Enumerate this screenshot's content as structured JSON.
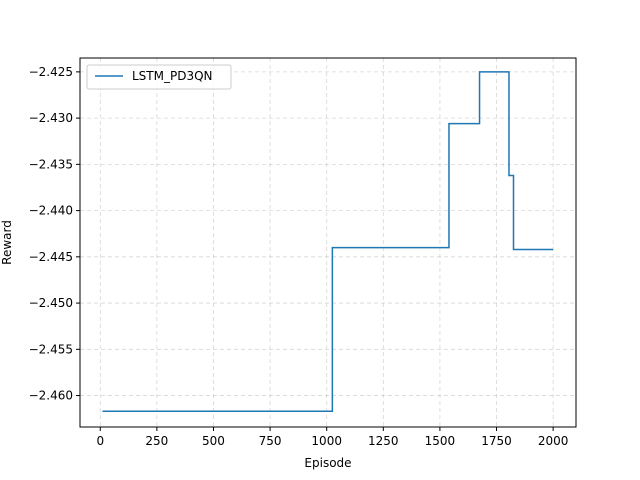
{
  "chart_data": {
    "type": "line",
    "title": "",
    "xlabel": "Episode",
    "ylabel": "Reward",
    "xlim": [
      -89.5,
      2101
    ],
    "ylim": [
      -2.4634,
      -2.4235
    ],
    "xticks": [
      0,
      250,
      500,
      750,
      1000,
      1250,
      1500,
      1750,
      2000
    ],
    "xtick_labels": [
      "0",
      "250",
      "500",
      "750",
      "1000",
      "1250",
      "1500",
      "1750",
      "2000"
    ],
    "yticks": [
      -2.46,
      -2.455,
      -2.45,
      -2.445,
      -2.44,
      -2.435,
      -2.43,
      -2.425
    ],
    "ytick_labels": [
      "−2.460",
      "−2.455",
      "−2.450",
      "−2.445",
      "−2.440",
      "−2.435",
      "−2.430",
      "−2.425"
    ],
    "grid": true,
    "legend_position": "top-left",
    "step": "post",
    "series": [
      {
        "name": "LSTM_PD3QN",
        "color": "#1f77b4",
        "x": [
          10,
          1025,
          1540,
          1675,
          1805,
          1825,
          2000
        ],
        "y": [
          -2.4617,
          -2.444,
          -2.4306,
          -2.425,
          -2.4362,
          -2.4442,
          -2.4442
        ]
      }
    ]
  }
}
